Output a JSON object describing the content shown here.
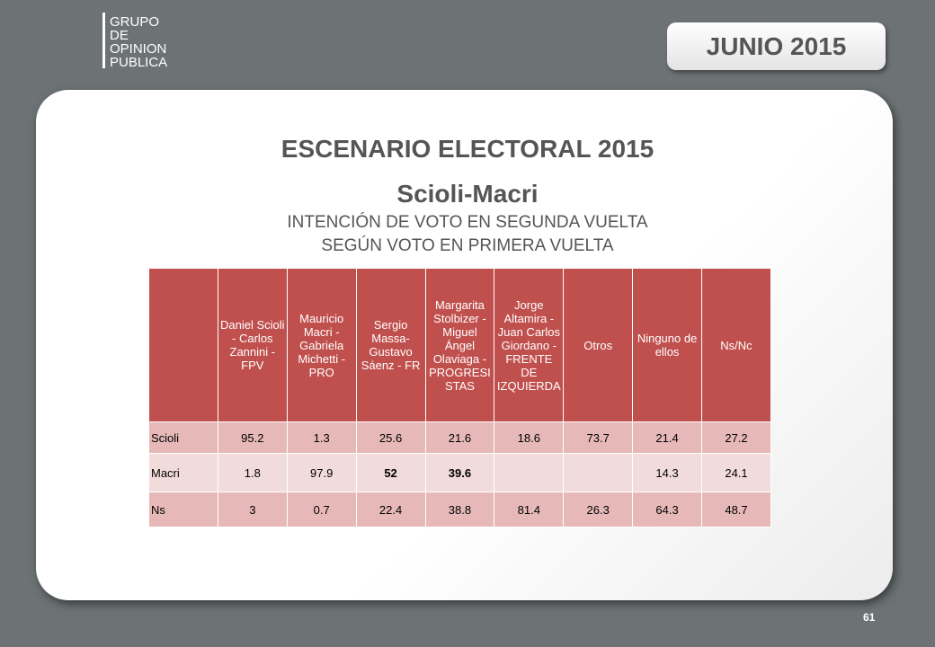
{
  "logo": {
    "lines": [
      "GRUPO",
      "DE",
      "OPINION",
      "PUBLICA"
    ]
  },
  "date_badge": "JUNIO 2015",
  "title": "ESCENARIO ELECTORAL 2015",
  "subtitle": "Scioli-Macri",
  "caption": [
    "INTENCIÓN DE VOTO EN SEGUNDA VUELTA",
    "SEGÚN VOTO EN PRIMERA VUELTA"
  ],
  "table": {
    "columns": [
      null,
      "Daniel Scioli - Carlos Zannini - FPV",
      "Mauricio Macri - Gabriela Michetti - PRO",
      "Sergio Massa- Gustavo Sáenz - FR",
      "Margarita Stolbizer - Miguel Ángel Olaviaga - PROGRESISTAS",
      "Jorge Altamira - Juan Carlos Giordano - FRENTE DE IZQUIERDA",
      "Otros",
      "Ninguno de ellos",
      "Ns/Nc"
    ],
    "rows": [
      [
        "Scioli",
        95.2,
        1.3,
        25.6,
        21.6,
        18.6,
        73.7,
        21.4,
        27.2
      ],
      [
        "Macri",
        1.8,
        97.9,
        52,
        39.6,
        null,
        null,
        14.3,
        24.1
      ],
      [
        "Ns",
        3,
        0.7,
        22.4,
        38.8,
        81.4,
        26.3,
        64.3,
        48.7
      ]
    ]
  },
  "page_number": "61"
}
